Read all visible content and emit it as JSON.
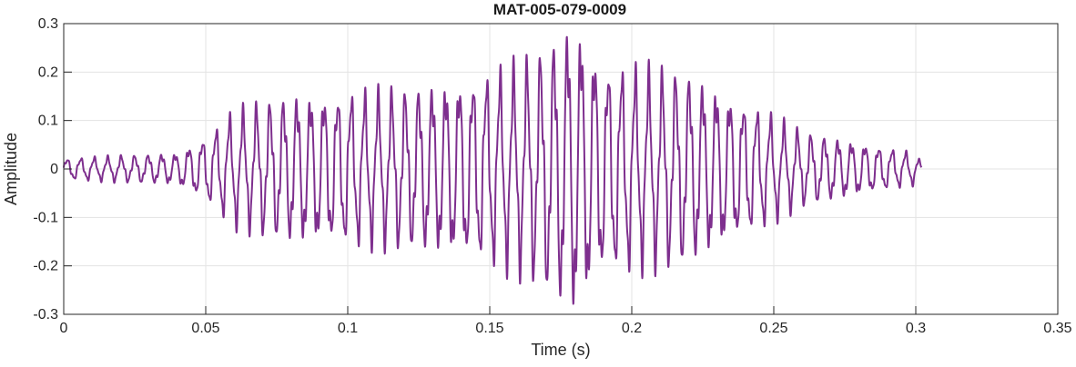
{
  "chart_data": {
    "type": "line",
    "title": "MAT-005-079-0009",
    "xlabel": "Time (s)",
    "ylabel": "Amplitude",
    "xlim": [
      0,
      0.35
    ],
    "ylim": [
      -0.3,
      0.3
    ],
    "xticks": [
      0,
      0.05,
      0.1,
      0.15,
      0.2,
      0.25,
      0.3,
      0.35
    ],
    "xtick_labels": [
      "0",
      "0.05",
      "0.1",
      "0.15",
      "0.2",
      "0.25",
      "0.3",
      "0.35"
    ],
    "yticks": [
      -0.3,
      -0.2,
      -0.1,
      0,
      0.1,
      0.2,
      0.3
    ],
    "ytick_labels": [
      "-0.3",
      "-0.2",
      "-0.1",
      "0",
      "0.1",
      "0.2",
      "0.3"
    ],
    "grid": true,
    "line_color": "#7E2F8E",
    "series": [
      {
        "x_range": [
          0,
          0.302
        ],
        "carrier_frequency_hz": 210,
        "envelope": [
          [
            0.0,
            0.02
          ],
          [
            0.04,
            0.03
          ],
          [
            0.05,
            0.06
          ],
          [
            0.06,
            0.11
          ],
          [
            0.08,
            0.14
          ],
          [
            0.12,
            0.15
          ],
          [
            0.15,
            0.18
          ],
          [
            0.165,
            0.21
          ],
          [
            0.18,
            0.28
          ],
          [
            0.19,
            0.2
          ],
          [
            0.22,
            0.18
          ],
          [
            0.25,
            0.1
          ],
          [
            0.26,
            0.07
          ],
          [
            0.3,
            0.03
          ],
          [
            0.302,
            0.01
          ]
        ]
      }
    ]
  }
}
